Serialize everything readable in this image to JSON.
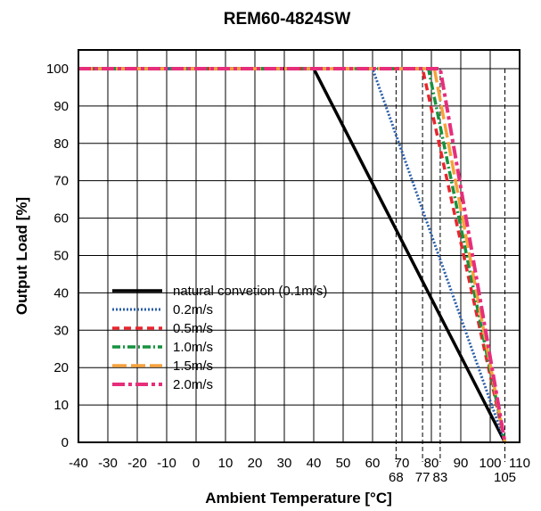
{
  "chart_data": {
    "type": "line",
    "title": "REM60-4824SW",
    "xlabel": "Ambient Temperature [°C]",
    "ylabel": "Output Load [%]",
    "xlim": [
      -40,
      110
    ],
    "ylim": [
      0,
      105
    ],
    "x_ticks": [
      -40,
      -30,
      -20,
      -10,
      0,
      10,
      20,
      30,
      40,
      50,
      60,
      70,
      80,
      90,
      100,
      110
    ],
    "y_ticks": [
      0,
      10,
      20,
      30,
      40,
      50,
      60,
      70,
      80,
      90,
      100
    ],
    "grid": true,
    "legend_position": "bottom-left",
    "marked_x": [
      {
        "x": 68,
        "label": "68"
      },
      {
        "x": 77,
        "label": "77"
      },
      {
        "x": 83,
        "label": "83"
      },
      {
        "x": 105,
        "label": "105"
      }
    ],
    "series": [
      {
        "name": "natural convetion (0.1m/s)",
        "color": "#000000",
        "style": "solid",
        "x": [
          -40,
          40,
          105
        ],
        "y": [
          100,
          100,
          0
        ]
      },
      {
        "name": "0.2m/s",
        "color": "#2b5ea8",
        "style": "dotted",
        "x": [
          -40,
          60,
          105
        ],
        "y": [
          100,
          100,
          0
        ]
      },
      {
        "name": "0.5m/s",
        "color": "#e8262d",
        "style": "dashed",
        "x": [
          -40,
          77,
          105
        ],
        "y": [
          100,
          100,
          0
        ]
      },
      {
        "name": "1.0m/s",
        "color": "#16923e",
        "style": "dashdot",
        "x": [
          -40,
          79,
          105
        ],
        "y": [
          100,
          100,
          0
        ]
      },
      {
        "name": "1.5m/s",
        "color": "#f7a23b",
        "style": "longdash",
        "x": [
          -40,
          81,
          105
        ],
        "y": [
          100,
          100,
          0
        ]
      },
      {
        "name": "2.0m/s",
        "color": "#e62e7b",
        "style": "dashdot-long",
        "x": [
          -40,
          83,
          105
        ],
        "y": [
          100,
          100,
          0
        ]
      }
    ]
  }
}
